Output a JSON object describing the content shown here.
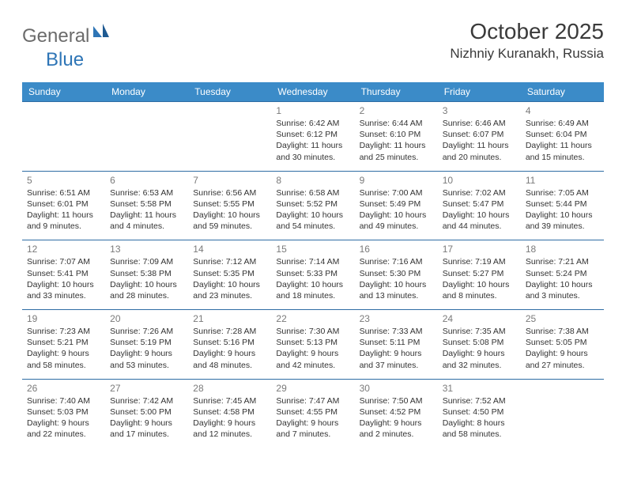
{
  "brand": {
    "general": "General",
    "blue": "Blue"
  },
  "title": {
    "month": "October 2025",
    "location": "Nizhniy Kuranakh, Russia"
  },
  "colors": {
    "header_bg": "#3b8bc8",
    "header_text": "#ffffff",
    "row_border": "#2e6da4",
    "daynum": "#7a7a7a",
    "body_text": "#333333",
    "logo_gray": "#6b6b6b",
    "logo_blue": "#2e75b6"
  },
  "daysOfWeek": [
    "Sunday",
    "Monday",
    "Tuesday",
    "Wednesday",
    "Thursday",
    "Friday",
    "Saturday"
  ],
  "weeks": [
    [
      null,
      null,
      null,
      {
        "d": "1",
        "sr": "6:42 AM",
        "ss": "6:12 PM",
        "dl": "11 hours and 30 minutes."
      },
      {
        "d": "2",
        "sr": "6:44 AM",
        "ss": "6:10 PM",
        "dl": "11 hours and 25 minutes."
      },
      {
        "d": "3",
        "sr": "6:46 AM",
        "ss": "6:07 PM",
        "dl": "11 hours and 20 minutes."
      },
      {
        "d": "4",
        "sr": "6:49 AM",
        "ss": "6:04 PM",
        "dl": "11 hours and 15 minutes."
      }
    ],
    [
      {
        "d": "5",
        "sr": "6:51 AM",
        "ss": "6:01 PM",
        "dl": "11 hours and 9 minutes."
      },
      {
        "d": "6",
        "sr": "6:53 AM",
        "ss": "5:58 PM",
        "dl": "11 hours and 4 minutes."
      },
      {
        "d": "7",
        "sr": "6:56 AM",
        "ss": "5:55 PM",
        "dl": "10 hours and 59 minutes."
      },
      {
        "d": "8",
        "sr": "6:58 AM",
        "ss": "5:52 PM",
        "dl": "10 hours and 54 minutes."
      },
      {
        "d": "9",
        "sr": "7:00 AM",
        "ss": "5:49 PM",
        "dl": "10 hours and 49 minutes."
      },
      {
        "d": "10",
        "sr": "7:02 AM",
        "ss": "5:47 PM",
        "dl": "10 hours and 44 minutes."
      },
      {
        "d": "11",
        "sr": "7:05 AM",
        "ss": "5:44 PM",
        "dl": "10 hours and 39 minutes."
      }
    ],
    [
      {
        "d": "12",
        "sr": "7:07 AM",
        "ss": "5:41 PM",
        "dl": "10 hours and 33 minutes."
      },
      {
        "d": "13",
        "sr": "7:09 AM",
        "ss": "5:38 PM",
        "dl": "10 hours and 28 minutes."
      },
      {
        "d": "14",
        "sr": "7:12 AM",
        "ss": "5:35 PM",
        "dl": "10 hours and 23 minutes."
      },
      {
        "d": "15",
        "sr": "7:14 AM",
        "ss": "5:33 PM",
        "dl": "10 hours and 18 minutes."
      },
      {
        "d": "16",
        "sr": "7:16 AM",
        "ss": "5:30 PM",
        "dl": "10 hours and 13 minutes."
      },
      {
        "d": "17",
        "sr": "7:19 AM",
        "ss": "5:27 PM",
        "dl": "10 hours and 8 minutes."
      },
      {
        "d": "18",
        "sr": "7:21 AM",
        "ss": "5:24 PM",
        "dl": "10 hours and 3 minutes."
      }
    ],
    [
      {
        "d": "19",
        "sr": "7:23 AM",
        "ss": "5:21 PM",
        "dl": "9 hours and 58 minutes."
      },
      {
        "d": "20",
        "sr": "7:26 AM",
        "ss": "5:19 PM",
        "dl": "9 hours and 53 minutes."
      },
      {
        "d": "21",
        "sr": "7:28 AM",
        "ss": "5:16 PM",
        "dl": "9 hours and 48 minutes."
      },
      {
        "d": "22",
        "sr": "7:30 AM",
        "ss": "5:13 PM",
        "dl": "9 hours and 42 minutes."
      },
      {
        "d": "23",
        "sr": "7:33 AM",
        "ss": "5:11 PM",
        "dl": "9 hours and 37 minutes."
      },
      {
        "d": "24",
        "sr": "7:35 AM",
        "ss": "5:08 PM",
        "dl": "9 hours and 32 minutes."
      },
      {
        "d": "25",
        "sr": "7:38 AM",
        "ss": "5:05 PM",
        "dl": "9 hours and 27 minutes."
      }
    ],
    [
      {
        "d": "26",
        "sr": "7:40 AM",
        "ss": "5:03 PM",
        "dl": "9 hours and 22 minutes."
      },
      {
        "d": "27",
        "sr": "7:42 AM",
        "ss": "5:00 PM",
        "dl": "9 hours and 17 minutes."
      },
      {
        "d": "28",
        "sr": "7:45 AM",
        "ss": "4:58 PM",
        "dl": "9 hours and 12 minutes."
      },
      {
        "d": "29",
        "sr": "7:47 AM",
        "ss": "4:55 PM",
        "dl": "9 hours and 7 minutes."
      },
      {
        "d": "30",
        "sr": "7:50 AM",
        "ss": "4:52 PM",
        "dl": "9 hours and 2 minutes."
      },
      {
        "d": "31",
        "sr": "7:52 AM",
        "ss": "4:50 PM",
        "dl": "8 hours and 58 minutes."
      },
      null
    ]
  ],
  "labels": {
    "sunrise": "Sunrise:",
    "sunset": "Sunset:",
    "daylight": "Daylight:"
  }
}
